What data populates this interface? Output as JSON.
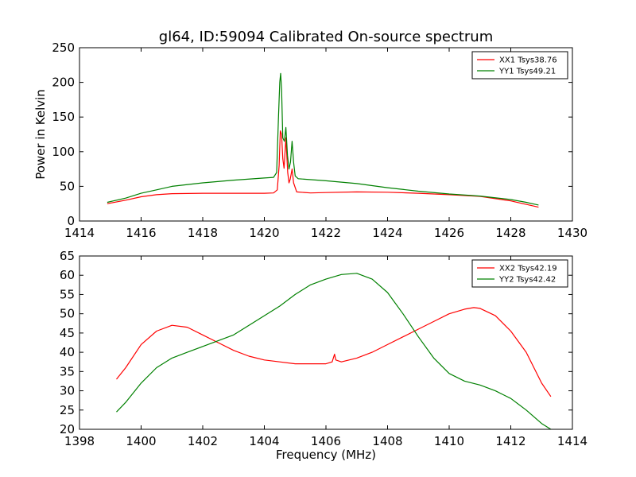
{
  "title": "gl64, ID:59094 Calibrated On-source spectrum",
  "colors": {
    "red": "#ff0000",
    "green": "#008000"
  },
  "chart_data": [
    {
      "type": "line",
      "title": "gl64, ID:59094 Calibrated On-source spectrum",
      "xlabel": "",
      "ylabel": "Power in Kelvin",
      "xlim": [
        1414,
        1430
      ],
      "ylim": [
        0,
        250
      ],
      "xticks": [
        "1414",
        "1416",
        "1418",
        "1420",
        "1422",
        "1424",
        "1426",
        "1428",
        "1430"
      ],
      "yticks": [
        "0",
        "50",
        "100",
        "150",
        "200",
        "250"
      ],
      "grid": false,
      "legend_position": "top-right",
      "series": [
        {
          "name": "XX1 Tsys38.76",
          "color": "#ff0000",
          "points": [
            [
              1414.9,
              25
            ],
            [
              1415.5,
              30
            ],
            [
              1416,
              35
            ],
            [
              1416.5,
              38
            ],
            [
              1417,
              39.5
            ],
            [
              1418,
              40
            ],
            [
              1419,
              40
            ],
            [
              1420,
              40
            ],
            [
              1420.3,
              40.5
            ],
            [
              1420.42,
              45
            ],
            [
              1420.48,
              80
            ],
            [
              1420.52,
              130
            ],
            [
              1420.56,
              125
            ],
            [
              1420.6,
              90
            ],
            [
              1420.64,
              76
            ],
            [
              1420.7,
              120
            ],
            [
              1420.76,
              70
            ],
            [
              1420.8,
              55
            ],
            [
              1420.84,
              60
            ],
            [
              1420.9,
              75
            ],
            [
              1420.95,
              55
            ],
            [
              1421.05,
              42
            ],
            [
              1421.5,
              40.5
            ],
            [
              1422,
              41
            ],
            [
              1423,
              42
            ],
            [
              1424,
              41.5
            ],
            [
              1425,
              40
            ],
            [
              1426,
              38
            ],
            [
              1427,
              35.5
            ],
            [
              1428,
              29
            ],
            [
              1428.5,
              24
            ],
            [
              1428.9,
              20
            ]
          ]
        },
        {
          "name": "YY1 Tsys49.21",
          "color": "#008000",
          "points": [
            [
              1414.9,
              27
            ],
            [
              1415.5,
              33
            ],
            [
              1416,
              40
            ],
            [
              1416.5,
              45
            ],
            [
              1417,
              50
            ],
            [
              1418,
              55
            ],
            [
              1419,
              59
            ],
            [
              1420,
              62
            ],
            [
              1420.3,
              63
            ],
            [
              1420.4,
              70
            ],
            [
              1420.46,
              150
            ],
            [
              1420.5,
              200
            ],
            [
              1420.53,
              213
            ],
            [
              1420.56,
              190
            ],
            [
              1420.6,
              120
            ],
            [
              1420.65,
              115
            ],
            [
              1420.7,
              135
            ],
            [
              1420.75,
              95
            ],
            [
              1420.8,
              75
            ],
            [
              1420.85,
              85
            ],
            [
              1420.9,
              115
            ],
            [
              1420.95,
              85
            ],
            [
              1421,
              65
            ],
            [
              1421.1,
              61
            ],
            [
              1422,
              58
            ],
            [
              1423,
              54
            ],
            [
              1424,
              48
            ],
            [
              1425,
              43
            ],
            [
              1426,
              39
            ],
            [
              1427,
              36
            ],
            [
              1428,
              31
            ],
            [
              1428.5,
              27
            ],
            [
              1428.9,
              23
            ]
          ]
        }
      ]
    },
    {
      "type": "line",
      "title": "",
      "xlabel": "Frequency (MHz)",
      "ylabel": "",
      "xlim": [
        1398,
        1414
      ],
      "ylim": [
        20,
        65
      ],
      "xticks": [
        "1398",
        "1400",
        "1402",
        "1404",
        "1406",
        "1408",
        "1410",
        "1412",
        "1414"
      ],
      "yticks": [
        "20",
        "25",
        "30",
        "35",
        "40",
        "45",
        "50",
        "55",
        "60",
        "65"
      ],
      "grid": false,
      "legend_position": "top-right",
      "series": [
        {
          "name": "XX2 Tsys42.19",
          "color": "#ff0000",
          "points": [
            [
              1399.2,
              33
            ],
            [
              1399.5,
              36
            ],
            [
              1400,
              42
            ],
            [
              1400.5,
              45.5
            ],
            [
              1401,
              47
            ],
            [
              1401.5,
              46.5
            ],
            [
              1402,
              44.5
            ],
            [
              1402.5,
              42.5
            ],
            [
              1403,
              40.5
            ],
            [
              1403.5,
              39
            ],
            [
              1404,
              38
            ],
            [
              1404.5,
              37.5
            ],
            [
              1405,
              37
            ],
            [
              1405.5,
              37
            ],
            [
              1406,
              37
            ],
            [
              1406.2,
              37.5
            ],
            [
              1406.28,
              39.5
            ],
            [
              1406.32,
              38
            ],
            [
              1406.5,
              37.5
            ],
            [
              1407,
              38.5
            ],
            [
              1407.5,
              40
            ],
            [
              1408,
              42
            ],
            [
              1408.5,
              44
            ],
            [
              1409,
              46
            ],
            [
              1409.5,
              48
            ],
            [
              1410,
              50
            ],
            [
              1410.5,
              51.2
            ],
            [
              1410.8,
              51.6
            ],
            [
              1411,
              51.4
            ],
            [
              1411.5,
              49.5
            ],
            [
              1412,
              45.5
            ],
            [
              1412.5,
              40
            ],
            [
              1413,
              32
            ],
            [
              1413.3,
              28.5
            ]
          ]
        },
        {
          "name": "YY2 Tsys42.42",
          "color": "#008000",
          "points": [
            [
              1399.2,
              24.5
            ],
            [
              1399.5,
              27
            ],
            [
              1400,
              32
            ],
            [
              1400.5,
              36
            ],
            [
              1401,
              38.5
            ],
            [
              1401.5,
              40
            ],
            [
              1402,
              41.5
            ],
            [
              1402.5,
              43
            ],
            [
              1403,
              44.5
            ],
            [
              1403.5,
              47
            ],
            [
              1404,
              49.5
            ],
            [
              1404.5,
              52
            ],
            [
              1405,
              55
            ],
            [
              1405.5,
              57.5
            ],
            [
              1406,
              59
            ],
            [
              1406.5,
              60.2
            ],
            [
              1407,
              60.5
            ],
            [
              1407.5,
              59
            ],
            [
              1408,
              55.5
            ],
            [
              1408.5,
              50
            ],
            [
              1409,
              44
            ],
            [
              1409.5,
              38.5
            ],
            [
              1410,
              34.5
            ],
            [
              1410.5,
              32.5
            ],
            [
              1411,
              31.5
            ],
            [
              1411.5,
              30
            ],
            [
              1412,
              28
            ],
            [
              1412.5,
              25
            ],
            [
              1413,
              21.5
            ],
            [
              1413.3,
              20
            ]
          ]
        }
      ]
    }
  ]
}
